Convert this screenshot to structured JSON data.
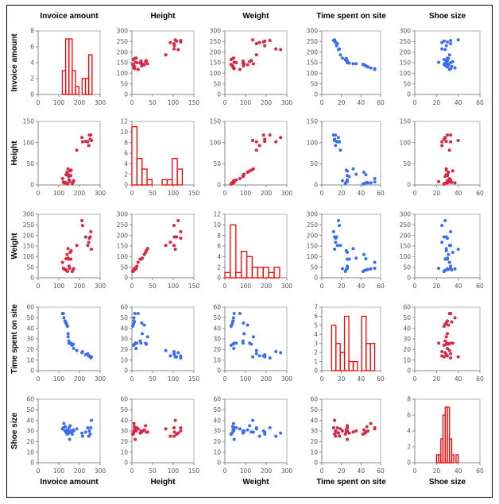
{
  "chart_data": {
    "type": "scatter-matrix",
    "variables": [
      {
        "name": "Invoice amount",
        "xlim": [
          0,
          300
        ],
        "xstep": 100,
        "ylim": [
          0,
          300
        ],
        "ystep": 50,
        "values": [
          255,
          252,
          248,
          245,
          230,
          240,
          212,
          215,
          187,
          258,
          118,
          122,
          125,
          130,
          132,
          135,
          138,
          140,
          142,
          145,
          145,
          148,
          150,
          152,
          155,
          158,
          160,
          165,
          172,
          170
        ]
      },
      {
        "name": "Height",
        "xlim": [
          0,
          150
        ],
        "xstep": 50,
        "ylim": [
          0,
          150
        ],
        "ystep": 50,
        "values": [
          118,
          108,
          118,
          93,
          103,
          102,
          112,
          102,
          82,
          105,
          15,
          7,
          5,
          5,
          6,
          24,
          4,
          30,
          2,
          25,
          38,
          20,
          12,
          8,
          33,
          22,
          35,
          3,
          10,
          7
        ]
      },
      {
        "name": "Weight",
        "xlim": [
          0,
          300
        ],
        "xstep": 100,
        "ylim": [
          0,
          300
        ],
        "ystep": 50,
        "values": [
          218,
          193,
          187,
          168,
          193,
          153,
          270,
          247,
          153,
          135,
          73,
          45,
          42,
          40,
          38,
          90,
          35,
          110,
          30,
          93,
          138,
          88,
          55,
          45,
          120,
          88,
          128,
          30,
          43,
          40
        ]
      },
      {
        "name": "Time spent on site",
        "xlim": [
          0,
          60
        ],
        "xstep": 20,
        "ylim": [
          0,
          60
        ],
        "ystep": 10,
        "values": [
          12,
          13,
          14,
          14,
          15,
          16,
          17,
          18,
          19,
          13,
          54,
          54,
          50,
          47,
          46,
          45,
          44,
          43,
          42,
          35,
          32,
          28,
          26,
          26,
          26,
          26,
          25,
          24,
          21,
          25
        ]
      },
      {
        "name": "Shoe size",
        "xlim": [
          0,
          60
        ],
        "xstep": 20,
        "ylim": [
          0,
          60
        ],
        "ystep": 10,
        "values": [
          33,
          27,
          30,
          25,
          29,
          33,
          28,
          25,
          32,
          40,
          32,
          33,
          37,
          30,
          34,
          29,
          28,
          31,
          27,
          30,
          29,
          28,
          33,
          22,
          35,
          30,
          29,
          27,
          30,
          31
        ]
      }
    ],
    "histograms": [
      {
        "bin_start": 101,
        "bin_width": 16,
        "counts": [
          0,
          3,
          7,
          7,
          3,
          1,
          0,
          2,
          2,
          5
        ],
        "ylim": [
          0,
          8
        ],
        "ystep": 2
      },
      {
        "bin_start": 0,
        "bin_width": 12.2,
        "counts": [
          11,
          5,
          3,
          1,
          0,
          0,
          1,
          1,
          5,
          3
        ],
        "ylim": [
          0,
          12
        ],
        "ystep": 2
      },
      {
        "bin_start": 0,
        "bin_width": 26.5,
        "counts": [
          1,
          10,
          1,
          5,
          4,
          2,
          2,
          2,
          1,
          2
        ],
        "ylim": [
          0,
          12
        ],
        "ystep": 2
      },
      {
        "bin_start": 10,
        "bin_width": 4.4,
        "counts": [
          5,
          3,
          2,
          6,
          1,
          1,
          0,
          6,
          3,
          3
        ],
        "ylim": [
          0,
          7
        ],
        "ystep": 1
      },
      {
        "bin_start": 20,
        "bin_width": 2,
        "counts": [
          1,
          1,
          3,
          6,
          7,
          7,
          3,
          1,
          0,
          1
        ],
        "ylim": [
          0,
          8
        ],
        "ystep": 2
      }
    ],
    "panel_colors": [
      [
        "hist",
        "red",
        "red",
        "blue",
        "blue"
      ],
      [
        "red",
        "hist",
        "red",
        "blue",
        "red"
      ],
      [
        "red",
        "red",
        "hist",
        "blue",
        "blue"
      ],
      [
        "blue",
        "blue",
        "blue",
        "hist",
        "red"
      ],
      [
        "blue",
        "red",
        "blue",
        "red",
        "hist"
      ]
    ],
    "colors": {
      "red": "#ee1c2e",
      "blue": "#3c6ff0",
      "hist": "#ff0000",
      "frame": "#b0b0b0",
      "axis": "#8a8a8a"
    },
    "grid": false,
    "legend": "none"
  }
}
